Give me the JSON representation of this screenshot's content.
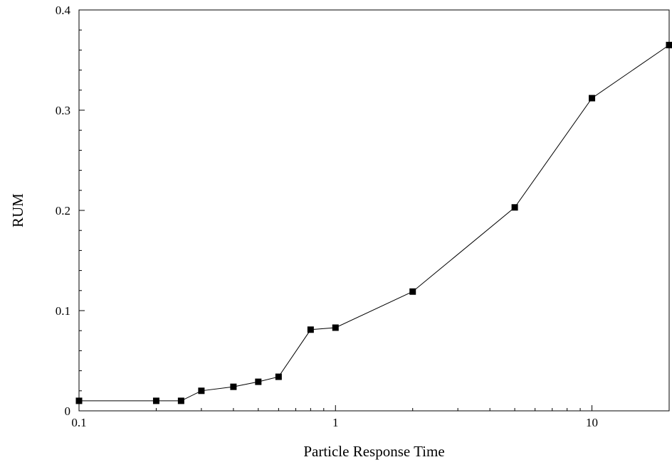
{
  "chart_data": {
    "type": "line",
    "title": "",
    "xlabel": "Particle Response Time",
    "ylabel": "RUM",
    "x_scale": "log",
    "xlim": [
      0.1,
      20
    ],
    "ylim": [
      0,
      0.4
    ],
    "x_ticks": [
      {
        "value": 0.1,
        "label": "0.1"
      },
      {
        "value": 1,
        "label": "1"
      },
      {
        "value": 10,
        "label": "10"
      }
    ],
    "y_ticks": [
      {
        "value": 0,
        "label": "0"
      },
      {
        "value": 0.1,
        "label": "0.1"
      },
      {
        "value": 0.2,
        "label": "0.2"
      },
      {
        "value": 0.3,
        "label": "0.3"
      },
      {
        "value": 0.4,
        "label": "0.4"
      }
    ],
    "grid": false,
    "marker": "square",
    "series": [
      {
        "x": [
          0.1,
          0.2,
          0.25,
          0.3,
          0.4,
          0.5,
          0.6,
          0.8,
          1,
          2,
          5,
          10,
          20
        ],
        "y": [
          0.01,
          0.01,
          0.01,
          0.02,
          0.024,
          0.029,
          0.034,
          0.081,
          0.083,
          0.119,
          0.203,
          0.312,
          0.365
        ]
      }
    ]
  }
}
